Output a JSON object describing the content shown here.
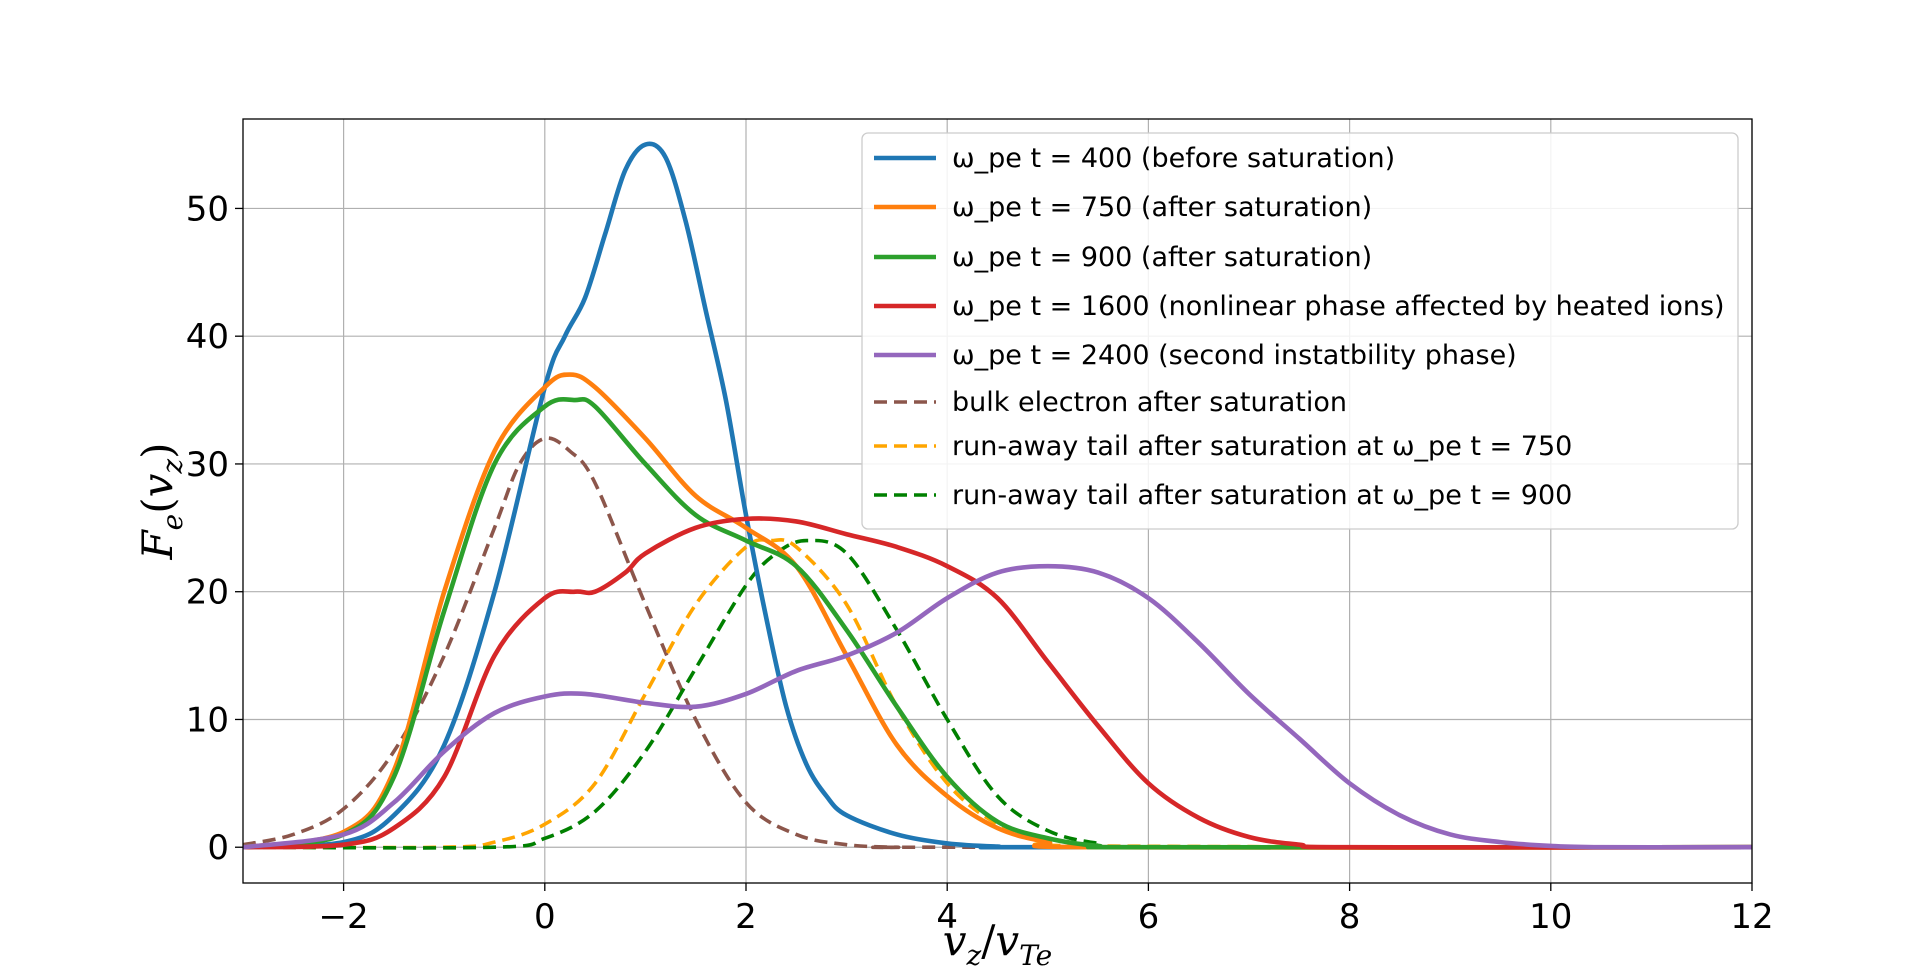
{
  "chart_data": {
    "type": "line",
    "xlabel": "v_z/v_Te",
    "ylabel": "F_e(v_z)",
    "xlim": [
      -3,
      12
    ],
    "ylim": [
      -2.8,
      57
    ],
    "grid": true,
    "legend_position": "top-right",
    "x_ticks": [
      -2,
      0,
      2,
      4,
      6,
      8,
      10,
      12
    ],
    "y_ticks": [
      0,
      10,
      20,
      30,
      40,
      50
    ],
    "series": [
      {
        "name": "ω_pe t = 400 (before saturation)",
        "color": "#1f77b4",
        "style": "solid",
        "x": [
          -3,
          -2,
          -1.5,
          -1,
          -0.5,
          0,
          0.2,
          0.4,
          0.6,
          0.8,
          1.0,
          1.2,
          1.4,
          1.6,
          1.8,
          2.0,
          2.2,
          2.4,
          2.6,
          2.8,
          3.0,
          3.5,
          4.0,
          4.5,
          5.0,
          12
        ],
        "y": [
          0,
          0.4,
          2.5,
          8,
          20,
          36,
          40,
          43,
          48,
          53,
          55,
          54,
          49,
          42,
          35,
          26,
          18,
          11,
          6.5,
          4,
          2.5,
          1,
          0.3,
          0.05,
          0,
          0
        ]
      },
      {
        "name": "ω_pe t = 750  (after saturation)",
        "color": "#ff7f0e",
        "style": "solid",
        "x": [
          -3,
          -2,
          -1.5,
          -1,
          -0.5,
          0,
          0.25,
          0.5,
          1,
          1.5,
          2,
          2.5,
          3,
          3.5,
          4,
          4.5,
          5,
          5.5,
          12
        ],
        "y": [
          0,
          1.2,
          6,
          20,
          31,
          36,
          37,
          36,
          32,
          27.5,
          25,
          22,
          15,
          8,
          4,
          1.5,
          0.4,
          0,
          0
        ]
      },
      {
        "name": "ω_pe t = 900  (after saturation)",
        "color": "#2ca02c",
        "style": "solid",
        "x": [
          -3,
          -2,
          -1.5,
          -1,
          -0.5,
          0,
          0.3,
          0.5,
          1,
          1.5,
          2,
          2.5,
          3,
          3.5,
          4,
          4.5,
          5,
          5.5,
          6,
          12
        ],
        "y": [
          0,
          1,
          5.5,
          18.5,
          30,
          34.5,
          35,
          34.5,
          30,
          26,
          24,
          22,
          17,
          11,
          5.5,
          2,
          0.7,
          0.1,
          0,
          0
        ]
      },
      {
        "name": "ω_pe t = 1600  (nonlinear phase affected by heated ions)",
        "color": "#d62728",
        "style": "solid",
        "x": [
          -3,
          -2,
          -1.5,
          -1,
          -0.5,
          0,
          0.3,
          0.5,
          0.8,
          1,
          1.5,
          2,
          2.5,
          3,
          3.5,
          4,
          4.5,
          5,
          5.5,
          6,
          6.5,
          7,
          7.5,
          8,
          12
        ],
        "y": [
          0,
          0.2,
          1.5,
          5.5,
          15,
          19.5,
          20,
          20,
          21.5,
          23,
          25,
          25.7,
          25.5,
          24.5,
          23.5,
          22,
          19.5,
          14.5,
          9.5,
          5,
          2.3,
          0.8,
          0.2,
          0,
          0
        ]
      },
      {
        "name": "ω_pe t = 2400  (second instatbility phase)",
        "color": "#9467bd",
        "style": "solid",
        "x": [
          -3,
          -2,
          -1.5,
          -1,
          -0.5,
          0,
          0.4,
          1,
          1.5,
          2,
          2.5,
          3,
          3.5,
          4,
          4.5,
          5,
          5.5,
          6,
          6.5,
          7,
          7.5,
          8,
          8.5,
          9,
          9.5,
          10,
          10.5,
          12
        ],
        "y": [
          0,
          1,
          3.5,
          7.5,
          10.5,
          11.8,
          12,
          11.3,
          11,
          12,
          13.8,
          15,
          16.8,
          19.5,
          21.5,
          22,
          21.5,
          19.5,
          16,
          12,
          8.5,
          5,
          2.5,
          1,
          0.4,
          0.1,
          0,
          0
        ]
      },
      {
        "name": "bulk electron after saturation",
        "color": "#8c564b",
        "style": "dashed",
        "x": [
          -3,
          -2.5,
          -2,
          -1.5,
          -1,
          -0.5,
          -0.25,
          0,
          0.25,
          0.5,
          1,
          1.5,
          2,
          2.5,
          3,
          3.5,
          4,
          12
        ],
        "y": [
          0.2,
          1,
          3,
          7.5,
          15,
          25,
          30,
          32,
          31,
          28.5,
          19,
          10,
          3.5,
          1,
          0.2,
          0,
          0,
          0
        ]
      },
      {
        "name": "run-away tail after saturation at ω_pe t = 750",
        "color": "#ffa500",
        "style": "dashed",
        "x": [
          -3,
          -1,
          -0.5,
          0,
          0.5,
          1,
          1.5,
          2,
          2.25,
          2.5,
          3,
          3.5,
          4,
          4.5,
          5,
          5.5,
          12
        ],
        "y": [
          0,
          0,
          0.4,
          1.8,
          5,
          12,
          19,
          23.5,
          24,
          23.5,
          19,
          11,
          5,
          1.8,
          0.5,
          0.1,
          0
        ]
      },
      {
        "name": "run-away tail after saturation at ω_pe t = 900",
        "color": "#008000",
        "style": "dashed",
        "x": [
          -3,
          -0.5,
          0,
          0.5,
          1,
          1.5,
          2,
          2.3,
          2.6,
          3,
          3.5,
          4,
          4.5,
          5,
          5.5,
          6,
          12
        ],
        "y": [
          0,
          0,
          0.7,
          2.8,
          7.5,
          14,
          20.5,
          23,
          24,
          23,
          17,
          10,
          4,
          1.3,
          0.3,
          0,
          0
        ]
      }
    ]
  }
}
